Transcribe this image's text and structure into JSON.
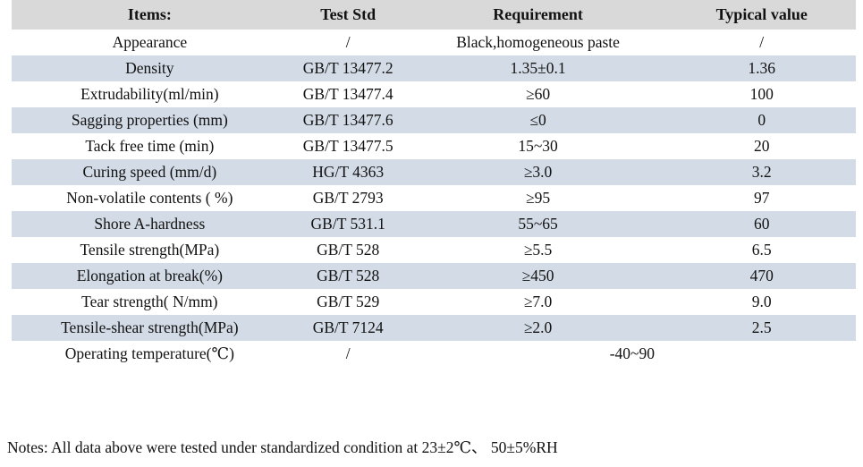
{
  "colors": {
    "header_bg": "#d9d9d9",
    "alt_row_bg": "#d3dbe6",
    "text": "#121212"
  },
  "table": {
    "headers": [
      "Items:",
      "Test Std",
      "Requirement",
      "Typical value"
    ],
    "rows": [
      {
        "item": "Appearance",
        "std": "/",
        "req": "Black,homogeneous paste",
        "val": "/"
      },
      {
        "item": "Density",
        "std": "GB/T 13477.2",
        "req": "1.35±0.1",
        "val": "1.36"
      },
      {
        "item": "Extrudability(ml/min)",
        "std": "GB/T 13477.4",
        "req": "≥60",
        "val": "100"
      },
      {
        "item": "Sagging properties (mm)",
        "std": "GB/T 13477.6",
        "req": "≤0",
        "val": "0"
      },
      {
        "item": "Tack free time (min)",
        "std": "GB/T 13477.5",
        "req": "15~30",
        "val": "20"
      },
      {
        "item": "Curing speed (mm/d)",
        "std": "HG/T 4363",
        "req": "≥3.0",
        "val": "3.2"
      },
      {
        "item": "Non-volatile contents ( %)",
        "std": "GB/T 2793",
        "req": "≥95",
        "val": "97"
      },
      {
        "item": "Shore A-hardness",
        "std": "GB/T 531.1",
        "req": "55~65",
        "val": "60"
      },
      {
        "item": "Tensile strength(MPa)",
        "std": "GB/T 528",
        "req": "≥5.5",
        "val": "6.5"
      },
      {
        "item": "Elongation at break(%)",
        "std": "GB/T 528",
        "req": "≥450",
        "val": "470"
      },
      {
        "item": "Tear strength( N/mm)",
        "std": "GB/T 529",
        "req": "≥7.0",
        "val": "9.0"
      },
      {
        "item": "Tensile-shear strength(MPa)",
        "std": "GB/T 7124",
        "req": "≥2.0",
        "val": "2.5"
      },
      {
        "item": "Operating temperature(℃)",
        "std": "/",
        "req": "-40~90",
        "val": null,
        "req_colspan": 2
      }
    ]
  },
  "notes": "Notes: All data above were tested under standardized condition at 23±2℃、 50±5%RH"
}
